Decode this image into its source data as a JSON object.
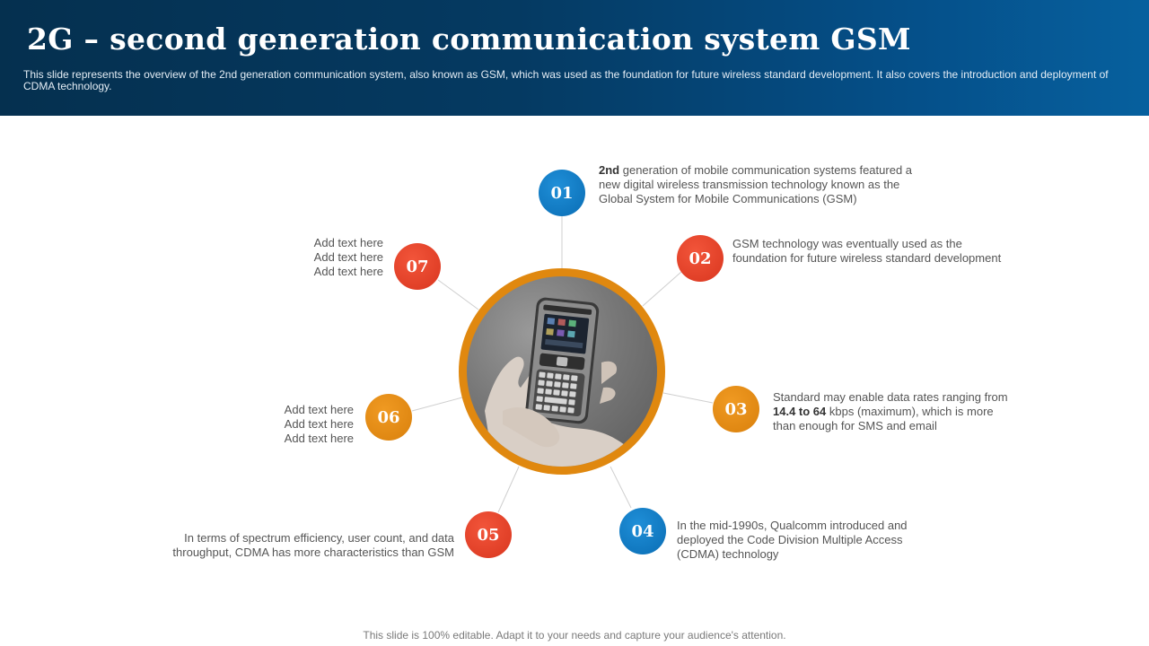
{
  "header": {
    "title": "2G – second generation communication system GSM",
    "subtitle": "This slide represents the overview of the 2nd generation communication system, also known as GSM, which was used as the foundation for future wireless standard development. It also covers the introduction and deployment of CDMA technology."
  },
  "hub": {
    "image": "phone-in-hand-photo",
    "ring_color": "#e0880f"
  },
  "items": [
    {
      "number": "01",
      "color": "#0a6db4",
      "text_bold": "2nd",
      "text": " generation of mobile communication systems featured a new digital wireless transmission technology known as the Global System for Mobile Communications (GSM)"
    },
    {
      "number": "02",
      "color": "#d9361f",
      "text": "GSM technology was eventually used as the foundation for future wireless standard development"
    },
    {
      "number": "03",
      "color": "#d9800c",
      "text_a": "Standard may enable data rates ranging from ",
      "text_bold": "14.4 to 64",
      "text_b": " kbps (maximum), which is more than enough for SMS and email"
    },
    {
      "number": "04",
      "color": "#0a6db4",
      "text": "In the mid-1990s, Qualcomm introduced and deployed the Code Division Multiple Access (CDMA) technology"
    },
    {
      "number": "05",
      "color": "#d9361f",
      "text": "In terms of spectrum efficiency, user count, and data throughput, CDMA has more characteristics than GSM"
    },
    {
      "number": "06",
      "color": "#d9800c",
      "lines": [
        "Add text here",
        "Add text here",
        "Add text here"
      ]
    },
    {
      "number": "07",
      "color": "#d9361f",
      "lines": [
        "Add text here",
        "Add text here",
        "Add text here"
      ]
    }
  ],
  "footer": "This slide is 100% editable. Adapt it to your needs and capture your audience's attention."
}
